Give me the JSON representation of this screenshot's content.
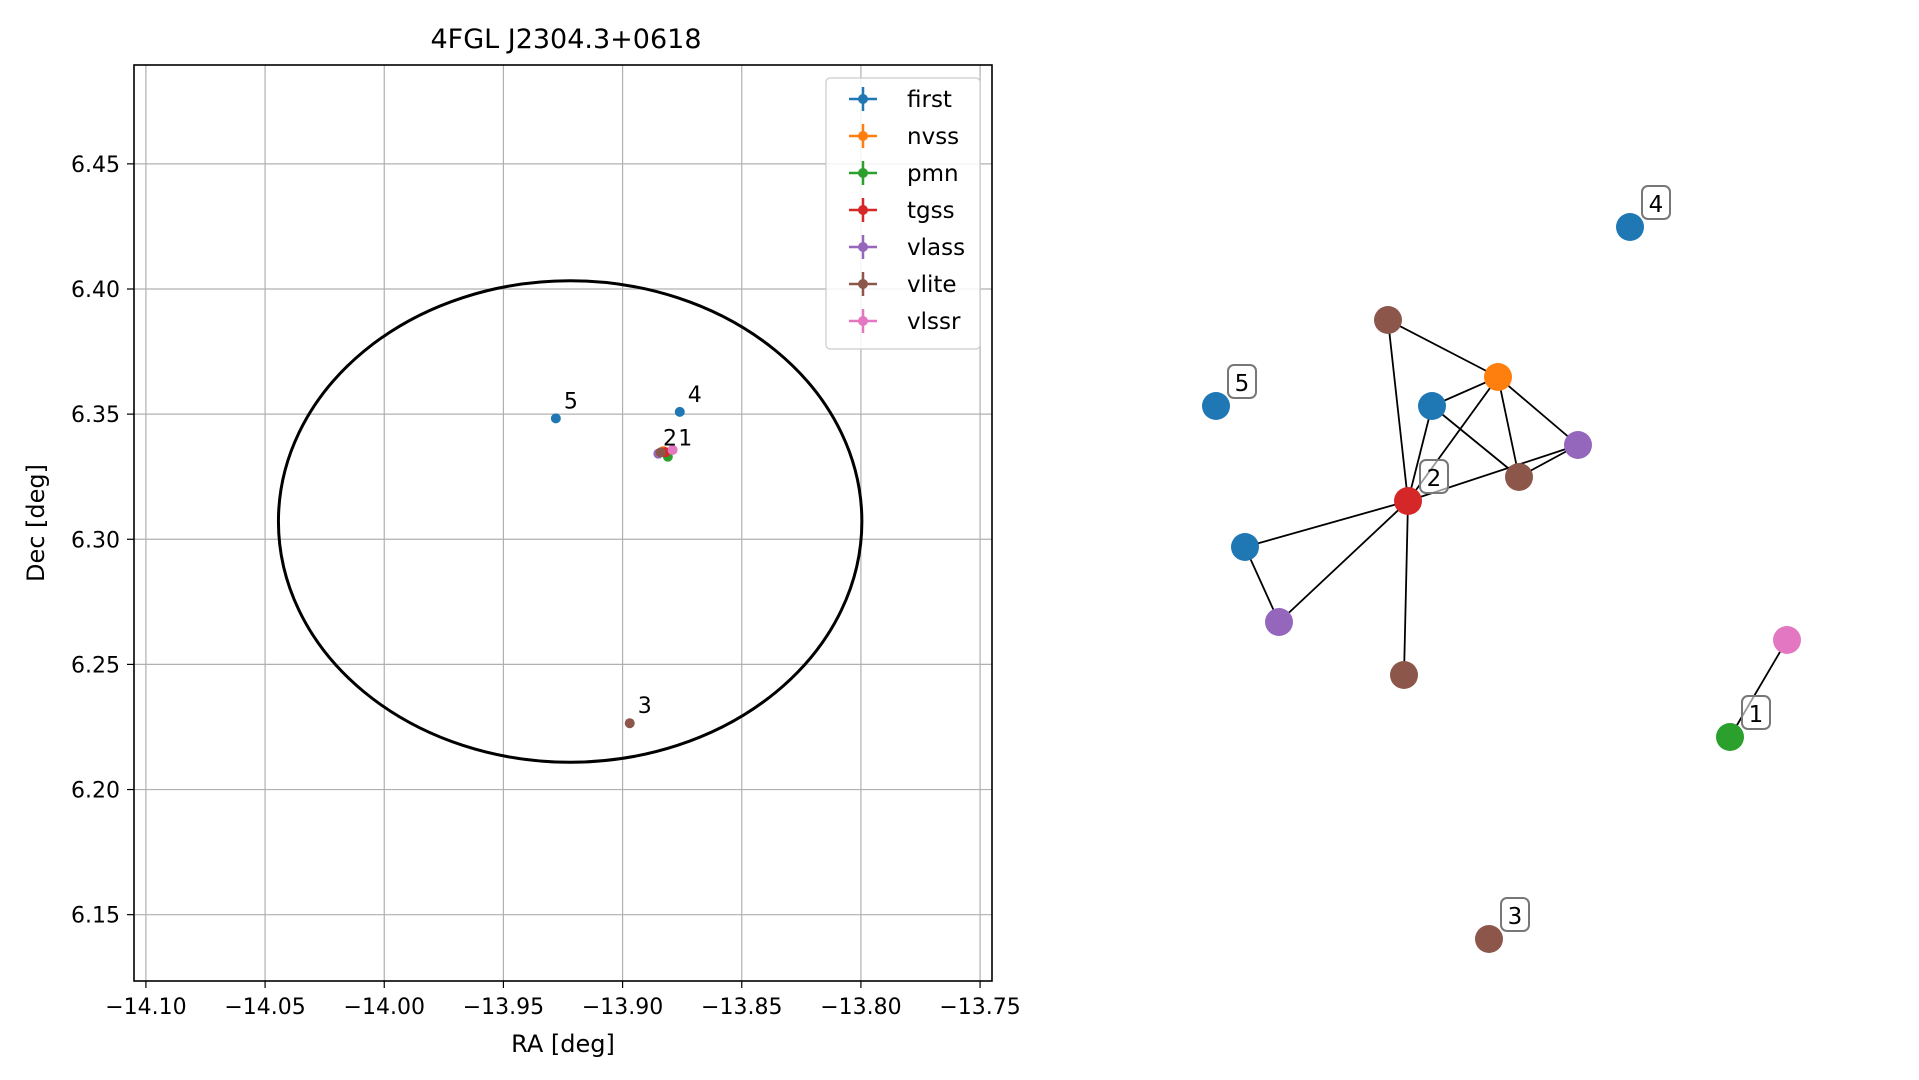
{
  "chart_data": [
    {
      "type": "scatter",
      "title": "4FGL J2304.3+0618",
      "xlabel": "RA [deg]",
      "ylabel": "Dec [deg]",
      "xlim": [
        -14.105,
        -13.745
      ],
      "ylim": [
        6.1235,
        6.4895
      ],
      "x_ticks": [
        -14.1,
        -14.05,
        -14.0,
        -13.95,
        -13.9,
        -13.85,
        -13.8,
        -13.75
      ],
      "x_tick_labels": [
        "−14.10",
        "−14.05",
        "−14.00",
        "−13.95",
        "−13.90",
        "−13.85",
        "−13.80",
        "−13.75"
      ],
      "y_ticks": [
        6.15,
        6.2,
        6.25,
        6.3,
        6.35,
        6.4,
        6.45
      ],
      "y_tick_labels": [
        "6.15",
        "6.20",
        "6.25",
        "6.30",
        "6.35",
        "6.40",
        "6.45"
      ],
      "grid": true,
      "legend_position": "top-right",
      "series": [
        {
          "name": "first",
          "color": "#1f77b4",
          "points": [
            {
              "x": -13.928,
              "y": 6.3483
            },
            {
              "x": -13.876,
              "y": 6.3509
            }
          ]
        },
        {
          "name": "nvss",
          "color": "#ff7f0e",
          "points": [
            {
              "x": -13.883,
              "y": 6.3352
            }
          ]
        },
        {
          "name": "pmn",
          "color": "#2ca02c",
          "points": [
            {
              "x": -13.881,
              "y": 6.333
            }
          ]
        },
        {
          "name": "tgss",
          "color": "#d62728",
          "points": [
            {
              "x": -13.882,
              "y": 6.3348
            }
          ]
        },
        {
          "name": "vlass",
          "color": "#9467bd",
          "points": [
            {
              "x": -13.885,
              "y": 6.3342
            }
          ]
        },
        {
          "name": "vlite",
          "color": "#8c564b",
          "points": [
            {
              "x": -13.897,
              "y": 6.2265
            },
            {
              "x": -13.884,
              "y": 6.3347
            }
          ]
        },
        {
          "name": "vlssr",
          "color": "#e377c2",
          "points": [
            {
              "x": -13.879,
              "y": 6.3357
            }
          ]
        }
      ],
      "ellipse": {
        "center_ra": -13.922,
        "center_dec": 6.3071,
        "semi_ra": 0.1224,
        "semi_dec": 0.0962,
        "color": "#000000"
      },
      "annotations": [
        {
          "text": "5",
          "x": -13.928,
          "y": 6.3483
        },
        {
          "text": "4",
          "x": -13.876,
          "y": 6.3509
        },
        {
          "text": "2",
          "x": -13.886,
          "y": 6.3342
        },
        {
          "text": "1",
          "x": -13.88,
          "y": 6.3342
        },
        {
          "text": "3",
          "x": -13.897,
          "y": 6.2265
        }
      ]
    },
    {
      "type": "network",
      "nodes": [
        {
          "id": "n4",
          "color": "#1f77b4",
          "label": "4"
        },
        {
          "id": "n5",
          "color": "#1f77b4",
          "label": "5"
        },
        {
          "id": "vlite_a",
          "color": "#8c564b",
          "label": ""
        },
        {
          "id": "nvss",
          "color": "#ff7f0e",
          "label": ""
        },
        {
          "id": "first_a",
          "color": "#1f77b4",
          "label": ""
        },
        {
          "id": "vlass_a",
          "color": "#9467bd",
          "label": ""
        },
        {
          "id": "vlite_b",
          "color": "#8c564b",
          "label": ""
        },
        {
          "id": "tgss",
          "color": "#d62728",
          "label": "2"
        },
        {
          "id": "first_b",
          "color": "#1f77b4",
          "label": ""
        },
        {
          "id": "vlass_b",
          "color": "#9467bd",
          "label": ""
        },
        {
          "id": "vlite_c",
          "color": "#8c564b",
          "label": ""
        },
        {
          "id": "vlssr",
          "color": "#e377c2",
          "label": ""
        },
        {
          "id": "pmn",
          "color": "#2ca02c",
          "label": "1"
        },
        {
          "id": "n3",
          "color": "#8c564b",
          "label": "3"
        }
      ],
      "edges": [
        [
          "vlite_a",
          "nvss"
        ],
        [
          "vlite_a",
          "tgss"
        ],
        [
          "nvss",
          "first_a"
        ],
        [
          "nvss",
          "vlass_a"
        ],
        [
          "nvss",
          "vlite_b"
        ],
        [
          "nvss",
          "tgss"
        ],
        [
          "first_a",
          "tgss"
        ],
        [
          "first_a",
          "vlite_b"
        ],
        [
          "vlass_a",
          "tgss"
        ],
        [
          "vlass_a",
          "vlite_b"
        ],
        [
          "tgss",
          "first_b"
        ],
        [
          "tgss",
          "vlass_b"
        ],
        [
          "tgss",
          "vlite_c"
        ],
        [
          "first_b",
          "vlass_b"
        ],
        [
          "vlssr",
          "pmn"
        ]
      ]
    }
  ]
}
